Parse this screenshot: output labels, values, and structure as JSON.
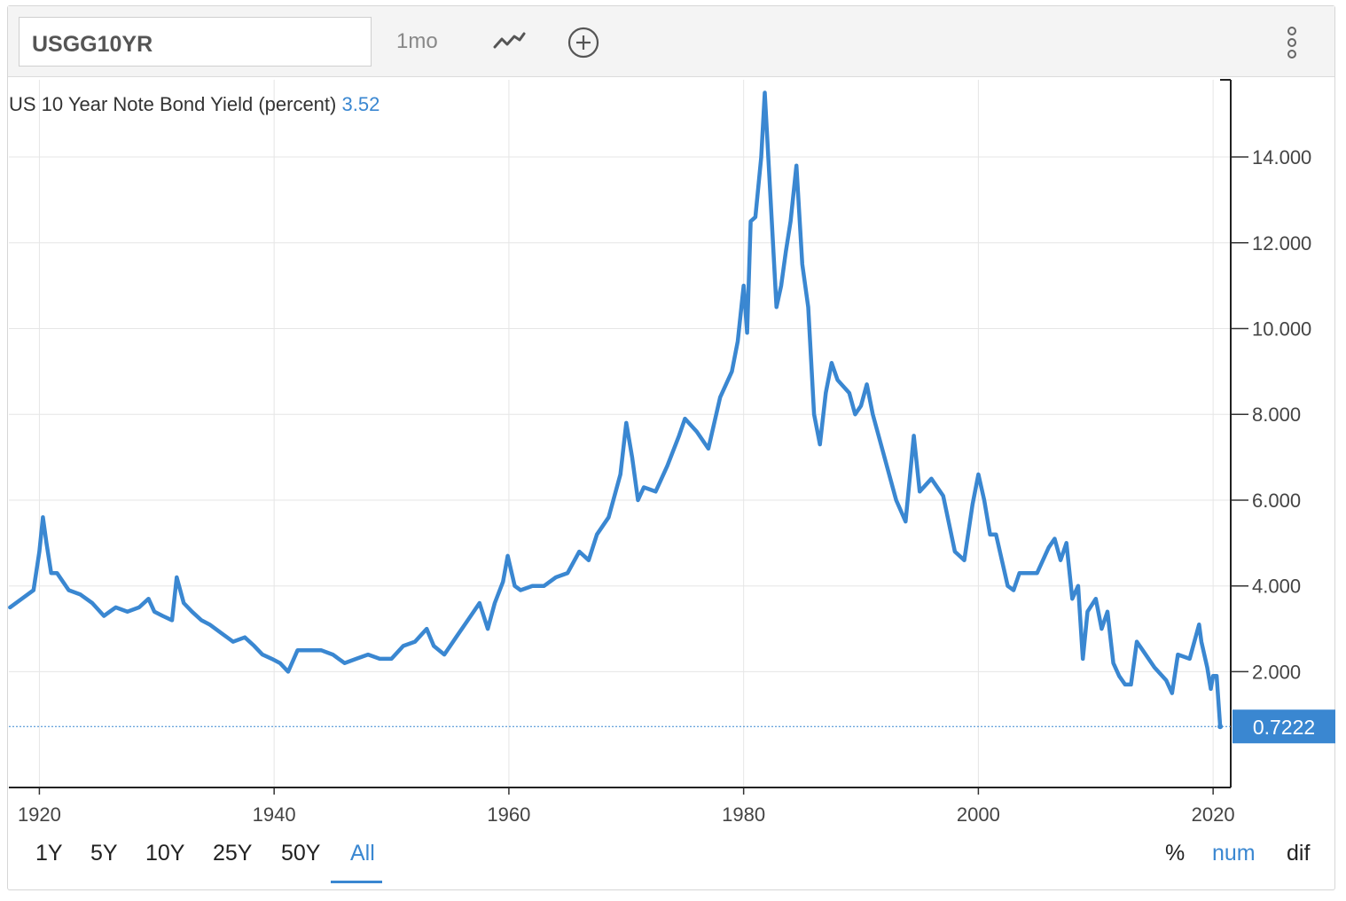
{
  "toolbar": {
    "symbol": "USGG10YR",
    "frequency": "1mo",
    "icons": [
      "line-chart-icon",
      "plus-circle-icon",
      "more-vertical-icon"
    ]
  },
  "legend": {
    "series_label": "US 10 Year Note Bond Yield (percent)",
    "series_value": "3.52"
  },
  "range_buttons": [
    {
      "label": "1Y",
      "active": false
    },
    {
      "label": "5Y",
      "active": false
    },
    {
      "label": "10Y",
      "active": false
    },
    {
      "label": "25Y",
      "active": false
    },
    {
      "label": "50Y",
      "active": false
    },
    {
      "label": "All",
      "active": true
    }
  ],
  "mode_buttons": [
    {
      "label": "%",
      "active": false
    },
    {
      "label": "num",
      "active": true
    },
    {
      "label": "dif",
      "active": false
    }
  ],
  "colors": {
    "line": "#3a87d1",
    "accent": "#3a87d1",
    "grid": "#e6e6e6",
    "last_value_bg": "#3a87d1"
  },
  "chart_data": {
    "type": "line",
    "title": "US 10 Year Note Bond Yield (percent)",
    "xlabel": "",
    "ylabel": "",
    "x_ticks": [
      "1920",
      "1940",
      "1960",
      "1980",
      "2000",
      "2020"
    ],
    "y_ticks": [
      "2.000",
      "4.000",
      "6.000",
      "8.000",
      "10.000",
      "12.000",
      "14.000"
    ],
    "xlim": [
      1917.4,
      2021.5
    ],
    "ylim": [
      -0.7,
      15.8
    ],
    "grid": true,
    "y_axis_side": "right",
    "last_value_label": "0.7222",
    "last_value": 0.7222,
    "series": [
      {
        "x": [
          1917.5,
          1918.5,
          1919.5,
          1920.0,
          1920.3,
          1920.6,
          1921.0,
          1921.5,
          1922.5,
          1923.5,
          1924.5,
          1925.5,
          1926.5,
          1927.5,
          1928.5,
          1929.3,
          1929.8,
          1930.5,
          1931.3,
          1931.7,
          1932.3,
          1933.0,
          1933.8,
          1934.5,
          1935.5,
          1936.5,
          1937.5,
          1938.3,
          1939.0,
          1939.8,
          1940.5,
          1941.2,
          1942.0,
          1943.0,
          1944.0,
          1945.0,
          1946.0,
          1947.0,
          1948.0,
          1949.0,
          1950.0,
          1951.0,
          1952.0,
          1953.0,
          1953.6,
          1954.5,
          1955.5,
          1956.5,
          1957.5,
          1958.2,
          1958.8,
          1959.5,
          1959.9,
          1960.5,
          1961.0,
          1962.0,
          1963.0,
          1964.0,
          1965.0,
          1966.0,
          1966.8,
          1967.5,
          1968.5,
          1969.5,
          1970.0,
          1970.5,
          1971.0,
          1971.5,
          1972.5,
          1973.5,
          1974.5,
          1975.0,
          1976.0,
          1977.0,
          1978.0,
          1979.0,
          1979.5,
          1980.0,
          1980.3,
          1980.6,
          1981.0,
          1981.5,
          1981.8,
          1982.3,
          1982.8,
          1983.2,
          1983.6,
          1984.0,
          1984.5,
          1985.0,
          1985.5,
          1986.0,
          1986.5,
          1987.0,
          1987.5,
          1988.0,
          1989.0,
          1989.5,
          1990.0,
          1990.5,
          1991.0,
          1992.0,
          1993.0,
          1993.8,
          1994.5,
          1995.0,
          1996.0,
          1997.0,
          1998.0,
          1998.8,
          1999.5,
          2000.0,
          2000.5,
          2001.0,
          2001.5,
          2002.0,
          2002.5,
          2003.0,
          2003.5,
          2004.0,
          2005.0,
          2006.0,
          2006.5,
          2007.0,
          2007.5,
          2008.0,
          2008.5,
          2008.9,
          2009.3,
          2010.0,
          2010.5,
          2011.0,
          2011.5,
          2012.0,
          2012.5,
          2013.0,
          2013.5,
          2014.0,
          2015.0,
          2016.0,
          2016.5,
          2017.0,
          2018.0,
          2018.8,
          2019.0,
          2019.5,
          2019.8,
          2020.0,
          2020.3,
          2020.6
        ],
        "y": [
          3.5,
          3.7,
          3.9,
          4.8,
          5.6,
          5.0,
          4.3,
          4.3,
          3.9,
          3.8,
          3.6,
          3.3,
          3.5,
          3.4,
          3.5,
          3.7,
          3.4,
          3.3,
          3.2,
          4.2,
          3.6,
          3.4,
          3.2,
          3.1,
          2.9,
          2.7,
          2.8,
          2.6,
          2.4,
          2.3,
          2.2,
          2.0,
          2.5,
          2.5,
          2.5,
          2.4,
          2.2,
          2.3,
          2.4,
          2.3,
          2.3,
          2.6,
          2.7,
          3.0,
          2.6,
          2.4,
          2.8,
          3.2,
          3.6,
          3.0,
          3.6,
          4.1,
          4.7,
          4.0,
          3.9,
          4.0,
          4.0,
          4.2,
          4.3,
          4.8,
          4.6,
          5.2,
          5.6,
          6.6,
          7.8,
          7.0,
          6.0,
          6.3,
          6.2,
          6.8,
          7.5,
          7.9,
          7.6,
          7.2,
          8.4,
          9.0,
          9.7,
          11.0,
          9.9,
          12.5,
          12.6,
          14.0,
          15.5,
          13.0,
          10.5,
          11.0,
          11.8,
          12.5,
          13.8,
          11.5,
          10.5,
          8.0,
          7.3,
          8.5,
          9.2,
          8.8,
          8.5,
          8.0,
          8.2,
          8.7,
          8.0,
          7.0,
          6.0,
          5.5,
          7.5,
          6.2,
          6.5,
          6.1,
          4.8,
          4.6,
          5.9,
          6.6,
          6.0,
          5.2,
          5.2,
          4.6,
          4.0,
          3.9,
          4.3,
          4.3,
          4.3,
          4.9,
          5.1,
          4.6,
          5.0,
          3.7,
          4.0,
          2.3,
          3.4,
          3.7,
          3.0,
          3.4,
          2.2,
          1.9,
          1.7,
          1.7,
          2.7,
          2.5,
          2.1,
          1.8,
          1.5,
          2.4,
          2.3,
          3.1,
          2.7,
          2.1,
          1.6,
          1.9,
          1.9,
          0.7222
        ]
      }
    ]
  }
}
